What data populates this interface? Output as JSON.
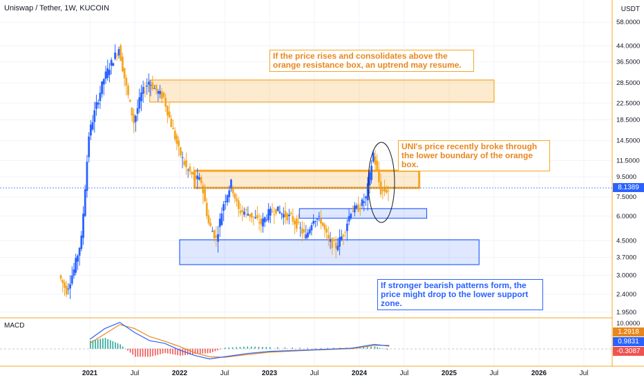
{
  "header": {
    "symbol": "Uniswap / Tether, 1W, KUCOIN",
    "currency": "USDT"
  },
  "macd_label": "MACD",
  "annotations": {
    "top": "If the price rises and consolidates above the orange resistance box, an uptrend may resume.",
    "middle": "UNI's price recently broke through the lower boundary of the orange box.",
    "bottom": "If stronger bearish patterns form, the price might drop to the lower support zone."
  },
  "price_axis": [
    "58.0000",
    "44.0000",
    "36.5000",
    "28.5000",
    "22.5000",
    "18.5000",
    "14.5000",
    "11.5000",
    "9.5000",
    "7.5000",
    "6.0000",
    "4.5000",
    "3.7000",
    "3.0000",
    "2.4000",
    "1.9500"
  ],
  "macd_axis": [
    "10.0000"
  ],
  "tags": {
    "last_price": "8.1389",
    "macd_a": "1.2918",
    "macd_b": "0.9831",
    "macd_c": "-0.3087"
  },
  "time_axis": [
    "2021",
    "Jul",
    "2022",
    "Jul",
    "2023",
    "Jul",
    "2024",
    "Jul",
    "2025",
    "Jul",
    "2026",
    "Jul"
  ],
  "colors": {
    "up": "#2962ff",
    "down": "#f5a623",
    "resistance": "#f5a623",
    "support": "#2962ff",
    "macd_line": "#2962ff",
    "signal_line": "#e8871e"
  },
  "chart_data": {
    "type": "candlestick",
    "y_scale": "log",
    "ylim": [
      1.9,
      60
    ],
    "x_range": [
      "2020-09",
      "2026-10"
    ],
    "series": [
      {
        "date": "2020-09",
        "value": 3.0
      },
      {
        "date": "2020-10",
        "value": 2.5
      },
      {
        "date": "2020-11",
        "value": 3.2
      },
      {
        "date": "2020-12",
        "value": 4.6
      },
      {
        "date": "2021-01",
        "value": 15.5
      },
      {
        "date": "2021-02",
        "value": 22.0
      },
      {
        "date": "2021-03",
        "value": 30.0
      },
      {
        "date": "2021-04",
        "value": 36.0
      },
      {
        "date": "2021-05",
        "value": 43.0
      },
      {
        "date": "2021-06",
        "value": 27.0
      },
      {
        "date": "2021-07",
        "value": 18.0
      },
      {
        "date": "2021-08",
        "value": 25.0
      },
      {
        "date": "2021-09",
        "value": 29.0
      },
      {
        "date": "2021-10",
        "value": 26.0
      },
      {
        "date": "2021-11",
        "value": 24.0
      },
      {
        "date": "2021-12",
        "value": 17.5
      },
      {
        "date": "2022-01",
        "value": 13.0
      },
      {
        "date": "2022-02",
        "value": 10.5
      },
      {
        "date": "2022-03",
        "value": 9.5
      },
      {
        "date": "2022-04",
        "value": 9.0
      },
      {
        "date": "2022-05",
        "value": 5.5
      },
      {
        "date": "2022-06",
        "value": 4.6
      },
      {
        "date": "2022-07",
        "value": 7.0
      },
      {
        "date": "2022-08",
        "value": 8.8
      },
      {
        "date": "2022-09",
        "value": 6.4
      },
      {
        "date": "2022-10",
        "value": 6.3
      },
      {
        "date": "2022-11",
        "value": 5.9
      },
      {
        "date": "2022-12",
        "value": 5.5
      },
      {
        "date": "2023-01",
        "value": 6.2
      },
      {
        "date": "2023-02",
        "value": 6.5
      },
      {
        "date": "2023-03",
        "value": 6.1
      },
      {
        "date": "2023-04",
        "value": 5.9
      },
      {
        "date": "2023-05",
        "value": 5.3
      },
      {
        "date": "2023-06",
        "value": 4.7
      },
      {
        "date": "2023-07",
        "value": 5.9
      },
      {
        "date": "2023-08",
        "value": 5.7
      },
      {
        "date": "2023-09",
        "value": 4.5
      },
      {
        "date": "2023-10",
        "value": 4.2
      },
      {
        "date": "2023-11",
        "value": 4.9
      },
      {
        "date": "2023-12",
        "value": 6.4
      },
      {
        "date": "2024-01",
        "value": 6.6
      },
      {
        "date": "2024-02",
        "value": 7.4
      },
      {
        "date": "2024-03",
        "value": 12.5
      },
      {
        "date": "2024-04",
        "value": 8.0
      },
      {
        "date": "2024-05",
        "value": 8.14
      }
    ],
    "zones": [
      {
        "name": "resistance-upper",
        "from": "2021-09",
        "to": "2025-07",
        "low": 22.8,
        "high": 29.5
      },
      {
        "name": "resistance-lower",
        "from": "2022-03",
        "to": "2024-09",
        "low": 8.35,
        "high": 10.2
      },
      {
        "name": "support-mid",
        "from": "2023-05",
        "to": "2024-10",
        "low": 5.85,
        "high": 6.55
      },
      {
        "name": "support-lower",
        "from": "2022-01",
        "to": "2025-05",
        "low": 3.4,
        "high": 4.55
      }
    ],
    "macd": {
      "macd_line": [
        {
          "date": "2021-01",
          "value": 3.5
        },
        {
          "date": "2021-03",
          "value": 7.5
        },
        {
          "date": "2021-05",
          "value": 9.8
        },
        {
          "date": "2021-07",
          "value": 6.0
        },
        {
          "date": "2021-09",
          "value": 3.0
        },
        {
          "date": "2021-11",
          "value": 2.0
        },
        {
          "date": "2022-01",
          "value": -0.5
        },
        {
          "date": "2022-03",
          "value": -2.5
        },
        {
          "date": "2022-05",
          "value": -3.8
        },
        {
          "date": "2022-07",
          "value": -3.0
        },
        {
          "date": "2022-10",
          "value": -1.8
        },
        {
          "date": "2023-01",
          "value": -1.0
        },
        {
          "date": "2023-07",
          "value": -0.4
        },
        {
          "date": "2023-12",
          "value": 0.2
        },
        {
          "date": "2024-03",
          "value": 1.6
        },
        {
          "date": "2024-05",
          "value": 0.98
        }
      ],
      "signal_line": [
        {
          "date": "2021-01",
          "value": 2.0
        },
        {
          "date": "2021-03",
          "value": 5.5
        },
        {
          "date": "2021-05",
          "value": 9.0
        },
        {
          "date": "2021-07",
          "value": 7.5
        },
        {
          "date": "2021-09",
          "value": 4.5
        },
        {
          "date": "2021-11",
          "value": 2.8
        },
        {
          "date": "2022-01",
          "value": 0.8
        },
        {
          "date": "2022-03",
          "value": -1.5
        },
        {
          "date": "2022-05",
          "value": -3.0
        },
        {
          "date": "2022-07",
          "value": -3.2
        },
        {
          "date": "2022-10",
          "value": -2.2
        },
        {
          "date": "2023-01",
          "value": -1.3
        },
        {
          "date": "2023-07",
          "value": -0.5
        },
        {
          "date": "2023-12",
          "value": 0.0
        },
        {
          "date": "2024-03",
          "value": 1.2
        },
        {
          "date": "2024-05",
          "value": 1.29
        }
      ],
      "ylim": [
        -6,
        11
      ]
    }
  }
}
